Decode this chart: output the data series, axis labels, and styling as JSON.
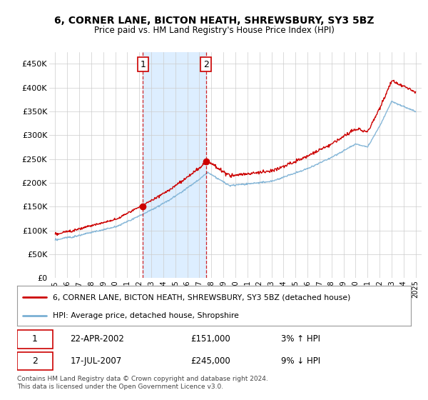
{
  "title": "6, CORNER LANE, BICTON HEATH, SHREWSBURY, SY3 5BZ",
  "subtitle": "Price paid vs. HM Land Registry's House Price Index (HPI)",
  "property_label": "6, CORNER LANE, BICTON HEATH, SHREWSBURY, SY3 5BZ (detached house)",
  "hpi_label": "HPI: Average price, detached house, Shropshire",
  "sale1_date": "22-APR-2002",
  "sale1_price": "£151,000",
  "sale1_hpi": "3% ↑ HPI",
  "sale2_date": "17-JUL-2007",
  "sale2_price": "£245,000",
  "sale2_hpi": "9% ↓ HPI",
  "footer": "Contains HM Land Registry data © Crown copyright and database right 2024.\nThis data is licensed under the Open Government Licence v3.0.",
  "property_color": "#cc0000",
  "hpi_color": "#7ab0d4",
  "shade_color": "#ddeeff",
  "sale1_x": 2002.3,
  "sale1_y": 151000,
  "sale2_x": 2007.54,
  "sale2_y": 245000,
  "ylim": [
    0,
    475000
  ],
  "xlim": [
    1994.5,
    2025.5
  ],
  "yticks": [
    0,
    50000,
    100000,
    150000,
    200000,
    250000,
    300000,
    350000,
    400000,
    450000
  ],
  "ytick_labels": [
    "£0",
    "£50K",
    "£100K",
    "£150K",
    "£200K",
    "£250K",
    "£300K",
    "£350K",
    "£400K",
    "£450K"
  ],
  "xticks": [
    1995,
    1996,
    1997,
    1998,
    1999,
    2000,
    2001,
    2002,
    2003,
    2004,
    2005,
    2006,
    2007,
    2008,
    2009,
    2010,
    2011,
    2012,
    2013,
    2014,
    2015,
    2016,
    2017,
    2018,
    2019,
    2020,
    2021,
    2022,
    2023,
    2024,
    2025
  ],
  "bg_color": "#ffffff",
  "plot_bg": "#ffffff",
  "grid_color": "#cccccc"
}
